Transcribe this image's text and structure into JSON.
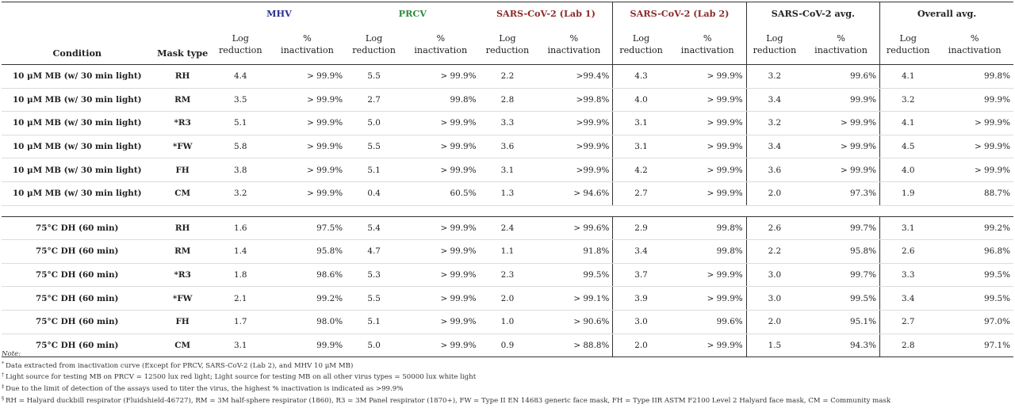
{
  "colors": {
    "mhv": "#2b2f8f",
    "prcv": "#2e8b3a",
    "sars1": "#8b2a2a",
    "sars2": "#8b2a2a",
    "text": "#222222"
  },
  "header": {
    "condition": "Condition",
    "mask_type": "Mask type",
    "log": "Log reduction",
    "log_l1": "Log",
    "log_l2": "reduction",
    "pct_l1": "%",
    "pct_l2": "inactivation",
    "groups": [
      {
        "key": "mhv",
        "label": "MHV"
      },
      {
        "key": "prcv",
        "label": "PRCV"
      },
      {
        "key": "sars1",
        "label": "SARS-CoV-2 (Lab 1)"
      },
      {
        "key": "sars2",
        "label": "SARS-CoV-2 (Lab 2)"
      },
      {
        "key": "sarsavg",
        "label": "SARS-CoV-2 avg."
      },
      {
        "key": "overall",
        "label": "Overall avg."
      }
    ]
  },
  "blocks": [
    {
      "rows": [
        {
          "condition": "10 μM MB (w/ 30 min light)",
          "mask": "RH",
          "values": [
            "4.4",
            "> 99.9%",
            "5.5",
            "> 99.9%",
            "2.2",
            ">99.4%",
            "4.3",
            "> 99.9%",
            "3.2",
            "99.6%",
            "4.1",
            "99.8%"
          ]
        },
        {
          "condition": "10 μM MB (w/ 30 min light)",
          "mask": "RM",
          "values": [
            "3.5",
            "> 99.9%",
            "2.7",
            "99.8%",
            "2.8",
            ">99.8%",
            "4.0",
            "> 99.9%",
            "3.4",
            "99.9%",
            "3.2",
            "99.9%"
          ]
        },
        {
          "condition": "10 μM MB (w/ 30 min light)",
          "mask": "*R3",
          "values": [
            "5.1",
            "> 99.9%",
            "5.0",
            "> 99.9%",
            "3.3",
            ">99.9%",
            "3.1",
            "> 99.9%",
            "3.2",
            "> 99.9%",
            "4.1",
            "> 99.9%"
          ]
        },
        {
          "condition": "10 μM MB (w/ 30 min light)",
          "mask": "*FW",
          "values": [
            "5.8",
            "> 99.9%",
            "5.5",
            "> 99.9%",
            "3.6",
            ">99.9%",
            "3.1",
            "> 99.9%",
            "3.4",
            "> 99.9%",
            "4.5",
            "> 99.9%"
          ]
        },
        {
          "condition": "10 μM MB (w/ 30 min light)",
          "mask": "FH",
          "values": [
            "3.8",
            "> 99.9%",
            "5.1",
            "> 99.9%",
            "3.1",
            ">99.9%",
            "4.2",
            "> 99.9%",
            "3.6",
            "> 99.9%",
            "4.0",
            "> 99.9%"
          ]
        },
        {
          "condition": "10 μM MB (w/ 30 min light)",
          "mask": "CM",
          "values": [
            "3.2",
            "> 99.9%",
            "0.4",
            "60.5%",
            "1.3",
            "> 94.6%",
            "2.7",
            "> 99.9%",
            "2.0",
            "97.3%",
            "1.9",
            "88.7%"
          ]
        }
      ]
    },
    {
      "rows": [
        {
          "condition": "75°C DH (60 min)",
          "mask": "RH",
          "values": [
            "1.6",
            "97.5%",
            "5.4",
            "> 99.9%",
            "2.4",
            "> 99.6%",
            "2.9",
            "99.8%",
            "2.6",
            "99.7%",
            "3.1",
            "99.2%"
          ]
        },
        {
          "condition": "75°C DH (60 min)",
          "mask": "RM",
          "values": [
            "1.4",
            "95.8%",
            "4.7",
            "> 99.9%",
            "1.1",
            "91.8%",
            "3.4",
            "99.8%",
            "2.2",
            "95.8%",
            "2.6",
            "96.8%"
          ]
        },
        {
          "condition": "75°C DH (60 min)",
          "mask": "*R3",
          "values": [
            "1.8",
            "98.6%",
            "5.3",
            "> 99.9%",
            "2.3",
            "99.5%",
            "3.7",
            "> 99.9%",
            "3.0",
            "99.7%",
            "3.3",
            "99.5%"
          ]
        },
        {
          "condition": "75°C DH (60 min)",
          "mask": "*FW",
          "values": [
            "2.1",
            "99.2%",
            "5.5",
            "> 99.9%",
            "2.0",
            "> 99.1%",
            "3.9",
            "> 99.9%",
            "3.0",
            "99.5%",
            "3.4",
            "99.5%"
          ]
        },
        {
          "condition": "75°C DH (60 min)",
          "mask": "FH",
          "values": [
            "1.7",
            "98.0%",
            "5.1",
            "> 99.9%",
            "1.0",
            "> 90.6%",
            "3.0",
            "99.6%",
            "2.0",
            "95.1%",
            "2.7",
            "97.0%"
          ]
        },
        {
          "condition": "75°C DH (60 min)",
          "mask": "CM",
          "values": [
            "3.1",
            "99.9%",
            "5.0",
            "> 99.9%",
            "0.9",
            "> 88.8%",
            "2.0",
            "> 99.9%",
            "1.5",
            "94.3%",
            "2.8",
            "97.1%"
          ]
        }
      ]
    }
  ],
  "notes": {
    "title": "Note:",
    "items": [
      {
        "mark": "*",
        "text": "Data extracted from inactivation curve (Except for PRCV, SARS-CoV-2 (Lab 2), and MHV 10 μM MB)"
      },
      {
        "mark": "†",
        "text": "Light source for testing MB on PRCV = 12500 lux red light; Light source for testing MB on all other virus types = 50000 lux white light"
      },
      {
        "mark": "‡",
        "text": "Due to the limit of detection of the assays used to titer the virus, the highest % inactivation is indicated as >99.9%"
      },
      {
        "mark": "§",
        "text": "RH = Halyard duckbill respirator (Fluidshield-46727), RM = 3M half-sphere respirator (1860), R3 = 3M Panel respirator (1870+), FW = Type II EN 14683 generic face mask, FH = Type IIR ASTM F2100 Level 2 Halyard face mask, CM = Community mask"
      }
    ]
  }
}
